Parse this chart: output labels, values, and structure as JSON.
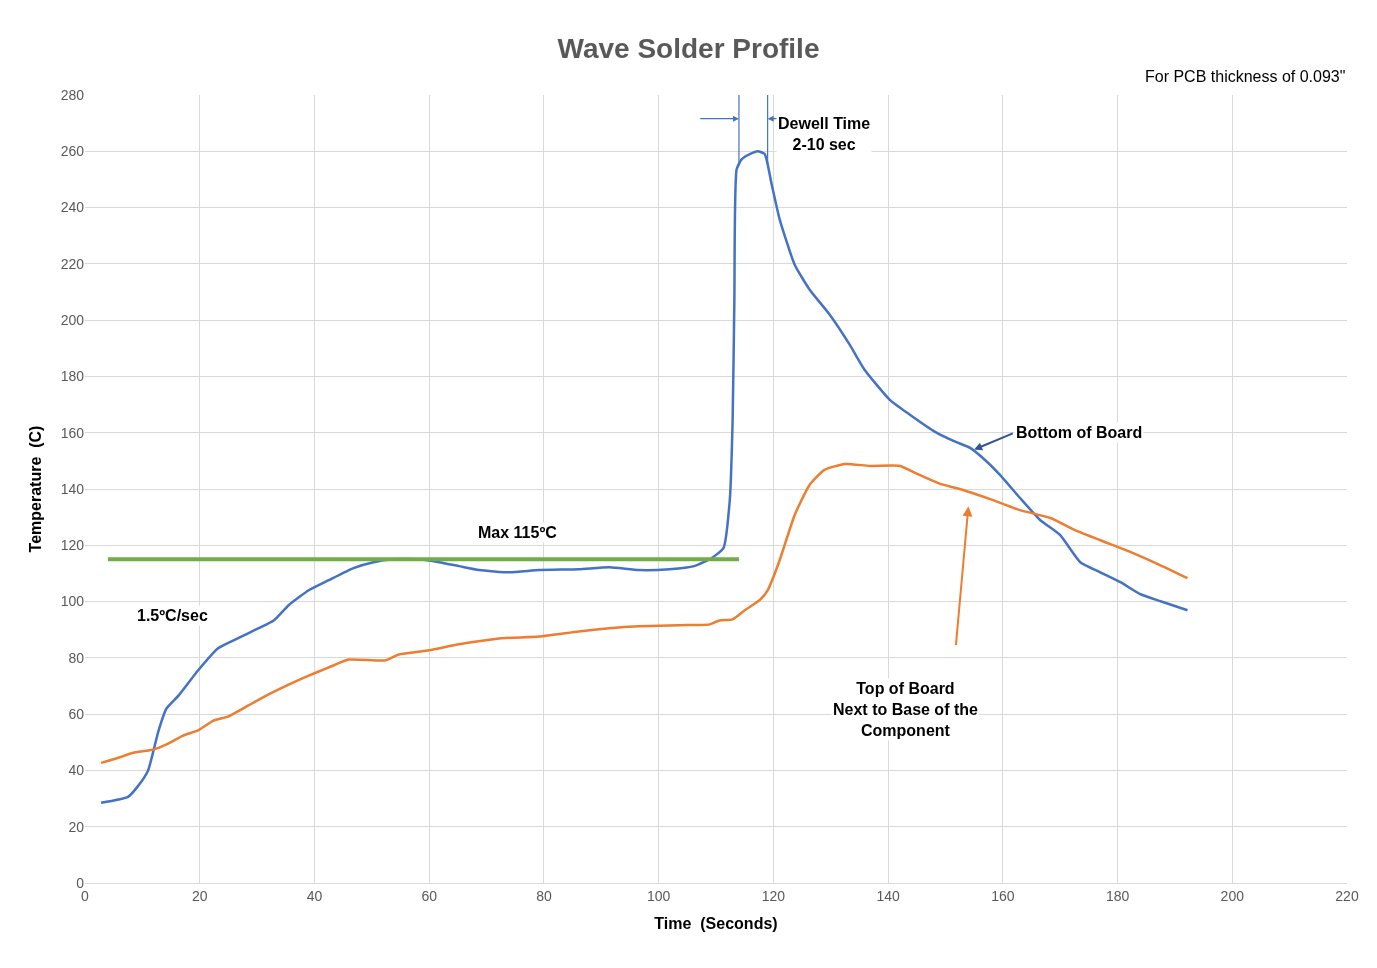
{
  "chart_data": {
    "type": "line",
    "title": "Wave Solder Profile",
    "xlabel": "Time  (Seconds)",
    "ylabel": "Temperature  (C)",
    "xlim": [
      0,
      220
    ],
    "xticks": [
      0,
      20,
      40,
      60,
      80,
      100,
      120,
      140,
      160,
      180,
      200,
      220
    ],
    "ylim": [
      0,
      280
    ],
    "yticks": [
      0,
      20,
      40,
      60,
      80,
      100,
      120,
      140,
      160,
      180,
      200,
      220,
      240,
      260,
      280
    ],
    "grid": true,
    "marker": "none",
    "line_style": "solid",
    "series": [
      {
        "color": "#4472c4",
        "x": [
          2.8,
          7.5,
          9.3,
          11,
          12.8,
          14.2,
          16.3,
          19.7,
          23.2,
          26.7,
          30.2,
          32.9,
          35.5,
          39,
          42.5,
          46.8,
          50.3,
          53.8,
          58.2,
          61.7,
          65.2,
          68.7,
          74,
          79.2,
          86.1,
          91.4,
          96.6,
          101.9,
          106.2,
          109.2,
          111.3,
          112.4,
          112.9,
          113.2,
          113.6,
          114.5,
          115.9,
          117.3,
          118.5,
          119.7,
          121.1,
          123.7,
          126.3,
          129.8,
          133.3,
          135.9,
          140.3,
          143.8,
          148.2,
          151.7,
          154.3,
          156.9,
          159.5,
          163,
          166.5,
          170,
          173.5,
          177,
          180.5,
          184,
          187.5,
          192.2
        ],
        "values": [
          28.5,
          30.6,
          34.6,
          40,
          54,
          62,
          66.6,
          75.5,
          83.4,
          87,
          90.5,
          93.3,
          98.7,
          104,
          107.6,
          111.9,
          114,
          115,
          115,
          114,
          112.6,
          111.2,
          110.4,
          111.2,
          111.5,
          112.2,
          111.2,
          111.5,
          112.6,
          115.4,
          119,
          136,
          164.6,
          207,
          253.6,
          257.2,
          259,
          260,
          259,
          248.3,
          235.8,
          219.8,
          210.9,
          202,
          191.3,
          182.4,
          171.7,
          166.4,
          160.3,
          156.8,
          154.6,
          150.3,
          145,
          136.8,
          129,
          123.6,
          114,
          110.4,
          106.9,
          102.6,
          100.1,
          96.9
        ]
      },
      {
        "color": "#ed7d31",
        "x": [
          2.8,
          5.8,
          8.4,
          11.9,
          14.5,
          17.1,
          19.7,
          22.4,
          24.9,
          28.5,
          32,
          35.5,
          39,
          42.5,
          46,
          52.4,
          54.7,
          60,
          65.2,
          72.2,
          79.2,
          86.1,
          91.4,
          96.6,
          103.6,
          108.9,
          110.6,
          112.9,
          115,
          117.6,
          119,
          121.1,
          123.7,
          126.3,
          128.9,
          132.5,
          136.8,
          142.1,
          144.7,
          149.1,
          152.5,
          157.8,
          163,
          168.3,
          172.6,
          177,
          182.3,
          187.5,
          192.2
        ],
        "values": [
          42.7,
          44.5,
          46.3,
          47.4,
          49.5,
          52.4,
          54.2,
          57.7,
          59.1,
          63.1,
          67,
          70.5,
          73.7,
          76.6,
          79.4,
          79.1,
          81.2,
          82.7,
          84.8,
          86.9,
          87.6,
          89.4,
          90.5,
          91.2,
          91.6,
          91.9,
          93.3,
          93.7,
          96.9,
          100.5,
          104,
          114.7,
          130.7,
          141.4,
          146.8,
          148.9,
          148.2,
          148.2,
          145.7,
          141.8,
          140,
          136.4,
          132.5,
          129.7,
          125.4,
          121.8,
          117.6,
          112.9,
          108.3
        ]
      },
      {
        "color": "#70ad47",
        "x": [
          4,
          114
        ],
        "values": [
          115,
          115
        ]
      }
    ],
    "ref_lines": [
      {
        "axis": "x",
        "value": 114,
        "color": "#4472c4"
      },
      {
        "axis": "x",
        "value": 119,
        "color": "#4472c4",
        "label": "Dewell Time\n2-10 sec"
      }
    ],
    "annotations": [
      "For PCB thickness of 0.093\"",
      "Max 115ºC",
      "1.5ºC/sec",
      {
        "text": "Bottom of Board",
        "x": 155,
        "y": 154
      },
      "Top of Board\nNext to Base of the\nComponent"
    ]
  }
}
